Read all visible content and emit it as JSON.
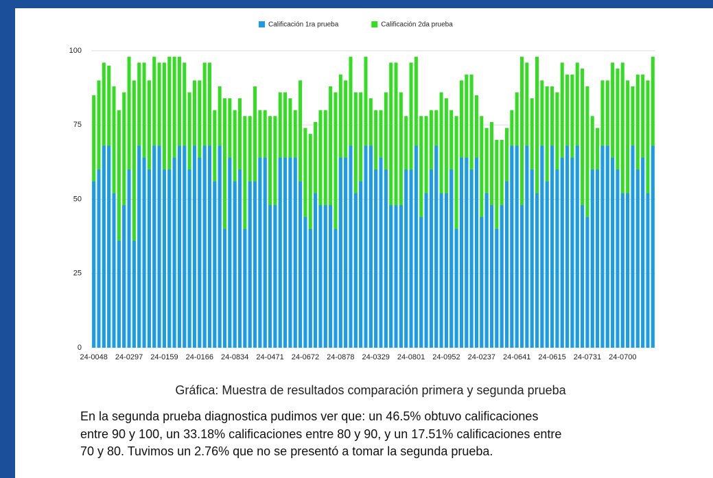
{
  "chart_data": {
    "type": "overlap_bar",
    "categories": [
      "24-0048",
      null,
      null,
      null,
      null,
      null,
      null,
      "24-0297",
      null,
      null,
      null,
      null,
      null,
      null,
      "24-0159",
      null,
      null,
      null,
      null,
      null,
      null,
      "24-0166",
      null,
      null,
      null,
      null,
      null,
      null,
      "24-0834",
      null,
      null,
      null,
      null,
      null,
      null,
      "24-0471",
      null,
      null,
      null,
      null,
      null,
      null,
      "24-0672",
      null,
      null,
      null,
      null,
      null,
      null,
      "24-0878",
      null,
      null,
      null,
      null,
      null,
      null,
      "24-0329",
      null,
      null,
      null,
      null,
      null,
      null,
      "24-0801",
      null,
      null,
      null,
      null,
      null,
      null,
      "24-0952",
      null,
      null,
      null,
      null,
      null,
      null,
      "24-0237",
      null,
      null,
      null,
      null,
      null,
      null,
      "24-0641",
      null,
      null,
      null,
      null,
      null,
      null,
      "24-0615",
      null,
      null,
      null,
      null,
      null,
      null,
      "24-0731",
      null,
      null,
      null,
      null,
      null,
      null,
      "24-0700",
      null,
      null,
      null,
      null,
      null,
      null
    ],
    "series": [
      {
        "name": "Calificación 2da prueba",
        "color": "#33dd22",
        "values": [
          85,
          90,
          96,
          95,
          88,
          80,
          86,
          98,
          90,
          96,
          96,
          90,
          98,
          96,
          96,
          98,
          98,
          98,
          96,
          86,
          90,
          90,
          96,
          96,
          80,
          88,
          84,
          84,
          80,
          84,
          78,
          78,
          88,
          80,
          80,
          78,
          78,
          86,
          86,
          84,
          80,
          90,
          74,
          72,
          76,
          80,
          80,
          88,
          86,
          92,
          90,
          98,
          86,
          86,
          98,
          84,
          80,
          80,
          86,
          96,
          96,
          86,
          78,
          96,
          98,
          78,
          78,
          80,
          80,
          86,
          84,
          80,
          78,
          90,
          92,
          92,
          85,
          78,
          74,
          76,
          70,
          70,
          74,
          80,
          86,
          98,
          96,
          84,
          98,
          90,
          88,
          88,
          86,
          96,
          92,
          92,
          96,
          94,
          88,
          78,
          74,
          90,
          90,
          96,
          94,
          96,
          90,
          88,
          92,
          92,
          90,
          98
        ]
      },
      {
        "name": "Calificación 1ra prueba",
        "color": "#1e9be8",
        "values": [
          56,
          60,
          68,
          68,
          52,
          36,
          48,
          60,
          36,
          68,
          64,
          60,
          68,
          68,
          60,
          60,
          64,
          68,
          68,
          60,
          68,
          64,
          68,
          68,
          56,
          68,
          40,
          64,
          56,
          60,
          40,
          56,
          56,
          64,
          64,
          48,
          48,
          64,
          64,
          64,
          64,
          56,
          44,
          40,
          52,
          48,
          48,
          48,
          40,
          64,
          64,
          68,
          52,
          56,
          68,
          68,
          60,
          64,
          60,
          48,
          48,
          48,
          60,
          60,
          68,
          44,
          52,
          60,
          68,
          52,
          52,
          60,
          40,
          64,
          64,
          60,
          64,
          44,
          52,
          48,
          40,
          48,
          56,
          68,
          68,
          48,
          68,
          60,
          52,
          68,
          56,
          68,
          60,
          64,
          68,
          64,
          68,
          48,
          44,
          60,
          60,
          68,
          68,
          64,
          60,
          52,
          52,
          68,
          60,
          64,
          52,
          68
        ]
      }
    ],
    "legend_order": [
      1,
      0
    ],
    "ylim": [
      0,
      100
    ],
    "yticks": [
      0,
      25,
      50,
      75,
      100
    ],
    "grid": true
  },
  "caption": "Gráfica: Muestra de resultados comparación primera y segunda prueba",
  "paragraph": [
    "En la segunda prueba diagnostica pudimos ver que: un 46.5% obtuvo calificaciones",
    "entre 90 y 100, un 33.18% calificaciones entre 80 y 90, y un 17.51% calificaciones entre",
    "70 y 80. Tuvimos un 2.76% que no se presentó a tomar la segunda prueba."
  ]
}
